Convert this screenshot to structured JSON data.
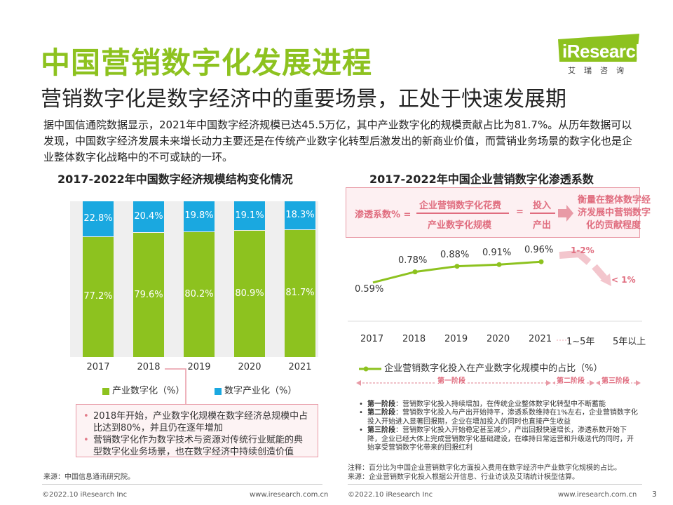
{
  "header": {
    "title": "中国营销数字化发展进程",
    "subtitle": "营销数字化是数字经济中的重要场景，正处于快速发展期",
    "logo_text": "iResearch",
    "logo_sub": "艾瑞咨询"
  },
  "intro": "据中国信通院数据显示，2021年中国数字经济规模已达45.5万亿，其中产业数字化的规模贡献占比为81.7%。从历年数据可以发现，中国数字经济发展未来增长动力主要还是在传统产业数字化转型后激发出的新商业价值，而营销业务场景的数字化也是企业整体数字化战略中的不可或缺的一环。",
  "left": {
    "title": "2017-2022年中国数字经济规模结构变化情况",
    "notes": [
      "2018年开始，产业数字化规模在数字经济总规模中占比达到80%，并且仍在逐年增加",
      "营销数字化作为数字技术与资源对传统行业赋能的典型数字化业务场景，也在数字经济中持续创造价值"
    ],
    "source": "来源：中国信息通讯研究院。"
  },
  "chart_data": [
    {
      "type": "bar",
      "title": "2017-2022年中国数字经济规模结构变化情况",
      "stacked": true,
      "categories": [
        "2017",
        "2018",
        "2019",
        "2020",
        "2021"
      ],
      "series": [
        {
          "name": "产业数字化（%）",
          "color": "#8dc21f",
          "values": [
            77.2,
            79.6,
            80.2,
            80.9,
            81.7
          ],
          "labels": [
            "77.2%",
            "79.6%",
            "80.2%",
            "80.9%",
            "81.7%"
          ]
        },
        {
          "name": "数字产业化（%）",
          "color": "#1aa8e0",
          "values": [
            22.8,
            20.4,
            19.8,
            19.1,
            18.3
          ],
          "labels": [
            "22.8%",
            "20.4%",
            "19.8%",
            "19.1%",
            "18.3%"
          ]
        }
      ],
      "ylim": [
        0,
        100
      ]
    },
    {
      "type": "line",
      "title": "2017-2022年中国企业营销数字化渗透系数",
      "x": [
        "2017",
        "2018",
        "2019",
        "2020",
        "2021"
      ],
      "x_extra": [
        "1~5年",
        "5年以上"
      ],
      "series": [
        {
          "name": "企业营销数字化投入在产业数字化规模中的占比（%）",
          "color": "#8dc21f",
          "values": [
            0.59,
            0.78,
            0.88,
            0.91,
            0.96
          ],
          "labels": [
            "0.59%",
            "0.78%",
            "0.88%",
            "0.91%",
            "0.96%"
          ]
        }
      ],
      "projections": [
        "1-2%",
        "< 1%"
      ],
      "ylim": [
        0,
        3
      ]
    }
  ],
  "right": {
    "title": "2017-2022年中国企业营销数字化渗透系数",
    "formula": {
      "lhs": "渗透系数% =",
      "numerator": "企业营销数字化花费",
      "denominator": "产业数字化规模",
      "eq": "=",
      "num2": "投入",
      "den2": "产出",
      "result": [
        "衡量在整体数字经",
        "济发展中营销数字",
        "化的贡献程度"
      ]
    },
    "stages": [
      "第一阶段",
      "第二阶段",
      "第三阶段"
    ],
    "stage_notes": [
      {
        "label": "第一阶段",
        "text": "：营销数字化投入持续增加，在传统企业整体数字化转型中不断蓄能"
      },
      {
        "label": "第二阶段",
        "text": "：营销数字化投入与产出开始持平，渗透系数维持在1%左右，企业营销数字化投入开始进入显著回报期，企业在增加投入的同时也直接产生收益"
      },
      {
        "label": "第三阶段",
        "text": "：营销数字化投入开始稳定甚至减少，产出回报快速增长，渗透系数开始下降，企业已经大体上完成营销数字化基础建设，在维持日常运营和升级迭代的同时，开始享受营销数字化带来的回报红利"
      }
    ],
    "note": "注释：百分比为中国企业营销数字化方面投入费用在数字经济中产业数字化规模的占比。",
    "source": "来源：企业营销数字化投入根据公开信息、行业访谈及艾瑞统计模型估算。"
  },
  "footer": {
    "left_copyright": "©2022.10 iResearch Inc",
    "left_url": "www.iresearch.com.cn",
    "right_copyright": "©2022.10 iResearch Inc",
    "right_url": "www.iresearch.com.cn",
    "page": "3"
  }
}
